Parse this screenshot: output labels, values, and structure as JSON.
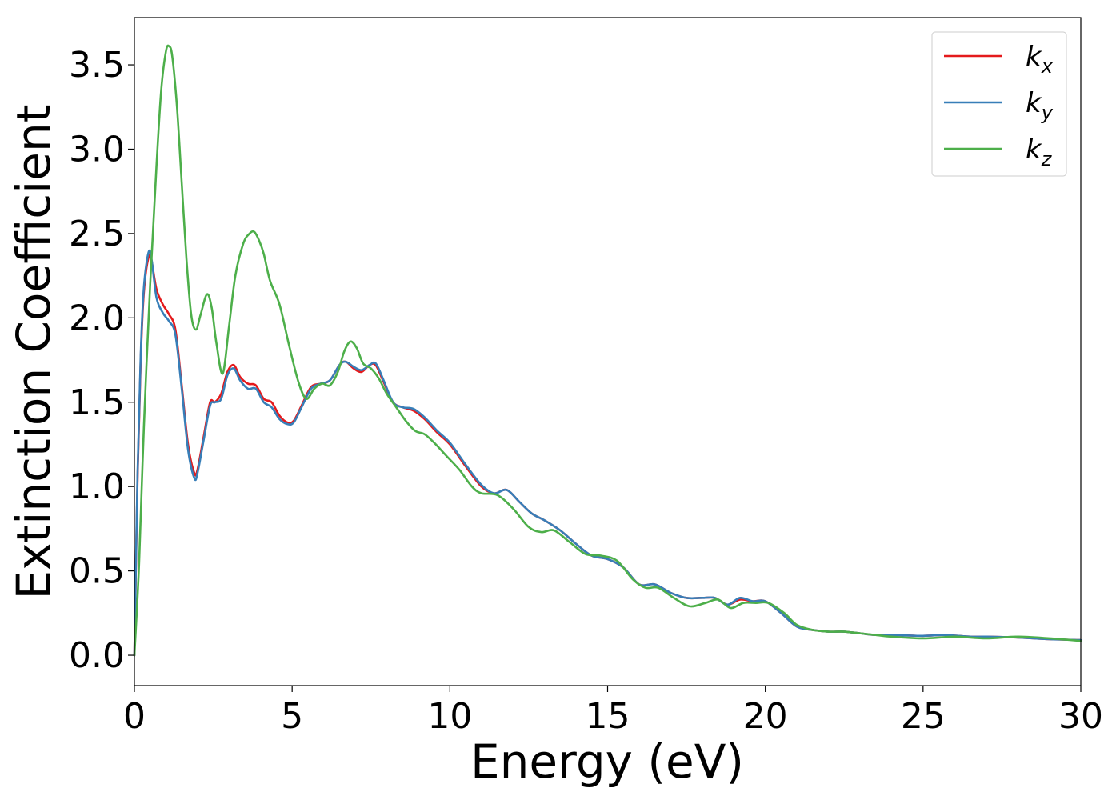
{
  "chart_data": {
    "type": "line",
    "title": "",
    "xlabel": "Energy (eV)",
    "ylabel": "Extinction Coefficient",
    "xlim": [
      0,
      30
    ],
    "ylim": [
      -0.18,
      3.78
    ],
    "xticks": [
      0,
      5,
      10,
      15,
      20,
      25,
      30
    ],
    "xtick_labels": [
      "0",
      "5",
      "10",
      "15",
      "20",
      "25",
      "30"
    ],
    "yticks": [
      0.0,
      0.5,
      1.0,
      1.5,
      2.0,
      2.5,
      3.0,
      3.5
    ],
    "ytick_labels": [
      "0.0",
      "0.5",
      "1.0",
      "1.5",
      "2.0",
      "2.5",
      "3.0",
      "3.5"
    ],
    "grid": false,
    "legend_position": "top-right",
    "series": [
      {
        "name": "k",
        "subscript": "x",
        "color": "#e41a1c",
        "x": [
          0,
          0.1,
          0.2,
          0.3,
          0.45,
          0.55,
          0.7,
          0.9,
          1.1,
          1.3,
          1.5,
          1.7,
          1.9,
          2.0,
          2.2,
          2.4,
          2.55,
          2.75,
          2.95,
          3.15,
          3.35,
          3.6,
          3.85,
          4.1,
          4.35,
          4.6,
          4.85,
          5.05,
          5.3,
          5.6,
          5.9,
          6.2,
          6.5,
          6.7,
          6.95,
          7.2,
          7.45,
          7.65,
          7.9,
          8.2,
          8.5,
          8.85,
          9.2,
          9.6,
          10.0,
          10.5,
          11.0,
          11.4,
          11.8,
          12.2,
          12.6,
          13.0,
          13.5,
          14.0,
          14.5,
          15.0,
          15.5,
          16.0,
          16.5,
          17.0,
          17.5,
          18.0,
          18.4,
          18.8,
          19.2,
          19.6,
          20.0,
          20.5,
          21.0,
          21.5,
          22.0,
          22.5,
          23.0,
          23.5,
          24.0,
          25.0,
          25.7,
          26.5,
          27.0,
          28.0,
          29.0,
          30.0
        ],
        "values": [
          0,
          1.05,
          1.75,
          2.15,
          2.36,
          2.33,
          2.17,
          2.08,
          2.02,
          1.93,
          1.6,
          1.25,
          1.08,
          1.1,
          1.3,
          1.5,
          1.5,
          1.55,
          1.68,
          1.72,
          1.65,
          1.61,
          1.6,
          1.52,
          1.5,
          1.42,
          1.38,
          1.39,
          1.48,
          1.59,
          1.61,
          1.63,
          1.72,
          1.74,
          1.7,
          1.68,
          1.72,
          1.72,
          1.62,
          1.5,
          1.47,
          1.45,
          1.4,
          1.32,
          1.25,
          1.12,
          1.0,
          0.96,
          0.98,
          0.91,
          0.84,
          0.8,
          0.74,
          0.66,
          0.59,
          0.57,
          0.52,
          0.42,
          0.42,
          0.37,
          0.34,
          0.34,
          0.34,
          0.3,
          0.33,
          0.32,
          0.32,
          0.25,
          0.17,
          0.15,
          0.14,
          0.14,
          0.13,
          0.12,
          0.12,
          0.115,
          0.12,
          0.11,
          0.11,
          0.105,
          0.095,
          0.09
        ]
      },
      {
        "name": "k",
        "subscript": "y",
        "color": "#377eb8",
        "x": [
          0,
          0.1,
          0.2,
          0.3,
          0.45,
          0.55,
          0.7,
          0.9,
          1.1,
          1.3,
          1.5,
          1.7,
          1.9,
          2.0,
          2.2,
          2.4,
          2.55,
          2.75,
          2.95,
          3.15,
          3.35,
          3.6,
          3.85,
          4.1,
          4.35,
          4.6,
          4.85,
          5.05,
          5.3,
          5.6,
          5.9,
          6.2,
          6.5,
          6.7,
          6.95,
          7.2,
          7.45,
          7.65,
          7.9,
          8.2,
          8.5,
          8.85,
          9.2,
          9.6,
          10.0,
          10.5,
          11.0,
          11.4,
          11.8,
          12.2,
          12.6,
          13.0,
          13.5,
          14.0,
          14.5,
          15.0,
          15.5,
          16.0,
          16.5,
          17.0,
          17.5,
          18.0,
          18.4,
          18.8,
          19.2,
          19.6,
          20.0,
          20.5,
          21.0,
          21.5,
          22.0,
          22.5,
          23.0,
          23.5,
          24.0,
          25.0,
          25.7,
          26.5,
          27.0,
          28.0,
          29.0,
          30.0
        ],
        "values": [
          0,
          1.08,
          1.78,
          2.18,
          2.39,
          2.34,
          2.12,
          2.03,
          1.98,
          1.9,
          1.58,
          1.22,
          1.05,
          1.08,
          1.28,
          1.48,
          1.5,
          1.52,
          1.66,
          1.7,
          1.63,
          1.58,
          1.58,
          1.5,
          1.47,
          1.4,
          1.37,
          1.38,
          1.47,
          1.58,
          1.61,
          1.63,
          1.72,
          1.74,
          1.71,
          1.69,
          1.72,
          1.73,
          1.63,
          1.5,
          1.47,
          1.46,
          1.41,
          1.33,
          1.26,
          1.13,
          1.01,
          0.96,
          0.98,
          0.91,
          0.84,
          0.8,
          0.74,
          0.66,
          0.59,
          0.57,
          0.52,
          0.42,
          0.42,
          0.37,
          0.34,
          0.34,
          0.34,
          0.3,
          0.34,
          0.32,
          0.32,
          0.25,
          0.17,
          0.15,
          0.14,
          0.14,
          0.13,
          0.12,
          0.12,
          0.115,
          0.12,
          0.11,
          0.11,
          0.105,
          0.095,
          0.09
        ]
      },
      {
        "name": "k",
        "subscript": "z",
        "color": "#4daf4a",
        "x": [
          0,
          0.15,
          0.3,
          0.5,
          0.7,
          0.85,
          1.0,
          1.1,
          1.2,
          1.35,
          1.5,
          1.65,
          1.8,
          1.95,
          2.1,
          2.3,
          2.45,
          2.6,
          2.8,
          3.0,
          3.2,
          3.45,
          3.65,
          3.8,
          3.95,
          4.1,
          4.3,
          4.6,
          4.9,
          5.2,
          5.45,
          5.7,
          5.95,
          6.2,
          6.45,
          6.65,
          6.85,
          7.05,
          7.25,
          7.5,
          7.75,
          8.0,
          8.3,
          8.6,
          8.9,
          9.2,
          9.5,
          9.9,
          10.3,
          10.7,
          11.0,
          11.5,
          12.0,
          12.5,
          12.9,
          13.3,
          13.8,
          14.3,
          14.8,
          15.3,
          15.8,
          16.2,
          16.6,
          17.1,
          17.6,
          18.1,
          18.5,
          18.9,
          19.3,
          19.7,
          20.1,
          20.6,
          21.0,
          21.5,
          22.0,
          22.5,
          23.0,
          23.5,
          24.0,
          25.0,
          26.0,
          27.0,
          28.0,
          29.0,
          30.0
        ],
        "values": [
          0,
          0.55,
          1.35,
          2.2,
          2.9,
          3.35,
          3.58,
          3.61,
          3.55,
          3.25,
          2.8,
          2.35,
          2.02,
          1.93,
          2.02,
          2.14,
          2.06,
          1.85,
          1.67,
          1.95,
          2.25,
          2.44,
          2.5,
          2.51,
          2.46,
          2.38,
          2.22,
          2.08,
          1.84,
          1.62,
          1.52,
          1.58,
          1.61,
          1.6,
          1.68,
          1.8,
          1.86,
          1.82,
          1.73,
          1.7,
          1.64,
          1.55,
          1.47,
          1.39,
          1.33,
          1.31,
          1.26,
          1.18,
          1.1,
          1.0,
          0.96,
          0.95,
          0.87,
          0.76,
          0.73,
          0.74,
          0.67,
          0.6,
          0.59,
          0.56,
          0.45,
          0.4,
          0.4,
          0.34,
          0.29,
          0.31,
          0.33,
          0.28,
          0.31,
          0.31,
          0.31,
          0.25,
          0.18,
          0.15,
          0.14,
          0.14,
          0.13,
          0.12,
          0.11,
          0.1,
          0.11,
          0.1,
          0.11,
          0.1,
          0.085
        ]
      }
    ]
  }
}
